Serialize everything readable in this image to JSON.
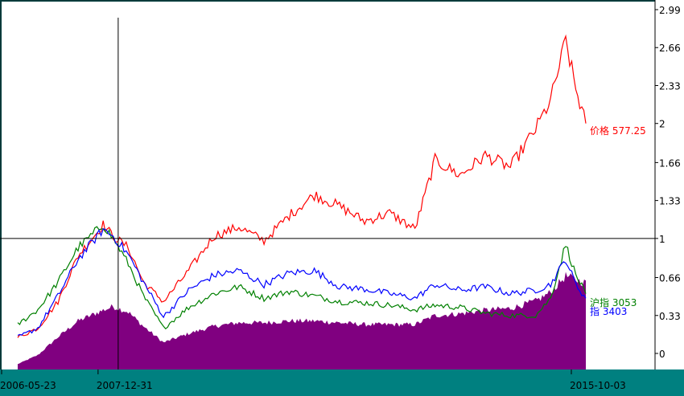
{
  "colors": {
    "background": "#ffffff",
    "frame": "#003a3a",
    "axis_band": "#008080",
    "axis_text": "#000000",
    "price": "#ff0000",
    "sh_index": "#008000",
    "other_index": "#0000ff",
    "volume": "#800080",
    "crosshair": "#000000"
  },
  "chart_data": {
    "type": "line",
    "y_scale": "relative (base 1 at cursor date)",
    "ylim": [
      0,
      2.99
    ],
    "y_ticks": [
      "2.99",
      "2.66",
      "2.33",
      "2",
      "1.66",
      "1.33",
      "1",
      "0.66",
      "0.33",
      "0"
    ],
    "x_tick_labels": [
      "2006-05-23",
      "2007-12-31",
      "2015-10-03"
    ],
    "cursor_date": "2007-12-31",
    "series": [
      {
        "key": "price",
        "label": "价格 577.25",
        "x": [
          "2006-05",
          "2006-09",
          "2007-01",
          "2007-05",
          "2007-10",
          "2007-12",
          "2008-03",
          "2008-06",
          "2008-10",
          "2009-03",
          "2009-08",
          "2010-01",
          "2010-06",
          "2010-11",
          "2011-04",
          "2011-09",
          "2012-02",
          "2012-07",
          "2012-12",
          "2013-04",
          "2013-09",
          "2014-02",
          "2014-07",
          "2014-12",
          "2015-03",
          "2015-06",
          "2015-08",
          "2015-10"
        ],
        "values": [
          0.14,
          0.22,
          0.45,
          0.85,
          1.12,
          1.02,
          0.92,
          0.62,
          0.45,
          0.72,
          1.02,
          1.1,
          0.98,
          1.2,
          1.38,
          1.28,
          1.15,
          1.22,
          1.08,
          1.68,
          1.55,
          1.72,
          1.62,
          1.95,
          2.2,
          2.72,
          2.3,
          2.0
        ]
      },
      {
        "key": "sh",
        "label": "沪指 3053",
        "x": [
          "2006-05",
          "2006-09",
          "2007-01",
          "2007-05",
          "2007-10",
          "2007-12",
          "2008-03",
          "2008-06",
          "2008-10",
          "2009-03",
          "2009-08",
          "2010-01",
          "2010-06",
          "2010-11",
          "2011-04",
          "2011-09",
          "2012-02",
          "2012-07",
          "2012-12",
          "2013-04",
          "2013-09",
          "2014-02",
          "2014-07",
          "2014-12",
          "2015-03",
          "2015-06",
          "2015-08",
          "2015-10"
        ],
        "values": [
          0.25,
          0.38,
          0.62,
          0.92,
          1.12,
          1.0,
          0.78,
          0.5,
          0.22,
          0.4,
          0.52,
          0.58,
          0.48,
          0.54,
          0.5,
          0.45,
          0.44,
          0.42,
          0.38,
          0.42,
          0.4,
          0.35,
          0.33,
          0.33,
          0.48,
          0.95,
          0.68,
          0.52
        ]
      },
      {
        "key": "other",
        "label": "指 3403",
        "x": [
          "2006-05",
          "2006-09",
          "2007-01",
          "2007-05",
          "2007-10",
          "2007-12",
          "2008-03",
          "2008-06",
          "2008-10",
          "2009-03",
          "2009-08",
          "2010-01",
          "2010-06",
          "2010-11",
          "2011-04",
          "2011-09",
          "2012-02",
          "2012-07",
          "2012-12",
          "2013-04",
          "2013-09",
          "2014-02",
          "2014-07",
          "2014-12",
          "2015-03",
          "2015-06",
          "2015-08",
          "2015-10"
        ],
        "values": [
          0.14,
          0.22,
          0.5,
          0.82,
          1.08,
          1.02,
          0.86,
          0.62,
          0.32,
          0.55,
          0.68,
          0.72,
          0.6,
          0.7,
          0.72,
          0.58,
          0.56,
          0.52,
          0.48,
          0.6,
          0.55,
          0.58,
          0.52,
          0.55,
          0.6,
          0.82,
          0.6,
          0.48
        ]
      },
      {
        "key": "volume",
        "x": [
          "2006-05",
          "2006-09",
          "2007-01",
          "2007-05",
          "2007-10",
          "2007-12",
          "2008-03",
          "2008-06",
          "2008-10",
          "2009-03",
          "2009-08",
          "2010-01",
          "2010-06",
          "2010-11",
          "2011-04",
          "2011-09",
          "2012-02",
          "2012-07",
          "2012-12",
          "2013-04",
          "2013-09",
          "2014-02",
          "2014-07",
          "2014-12",
          "2015-03",
          "2015-06",
          "2015-08",
          "2015-10"
        ],
        "values": [
          0.03,
          0.08,
          0.18,
          0.27,
          0.33,
          0.35,
          0.32,
          0.24,
          0.15,
          0.2,
          0.24,
          0.26,
          0.26,
          0.27,
          0.27,
          0.26,
          0.25,
          0.25,
          0.25,
          0.3,
          0.31,
          0.33,
          0.34,
          0.38,
          0.43,
          0.52,
          0.5,
          0.48
        ]
      }
    ]
  }
}
